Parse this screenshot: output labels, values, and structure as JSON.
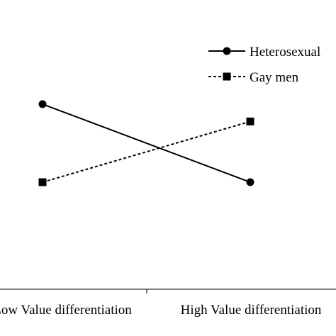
{
  "chart_data": {
    "type": "line",
    "title": "",
    "xlabel": "",
    "ylabel": "",
    "categories": [
      "Low Value differentiation",
      "High Value differentiation"
    ],
    "ylim": [
      0,
      10
    ],
    "grid": false,
    "legend_position": "top-right",
    "series": [
      {
        "name": "Heterosexual",
        "values": [
          6.4,
          3.7
        ],
        "marker": "circle",
        "line_style": "solid",
        "color": "#000000"
      },
      {
        "name": "Gay men",
        "values": [
          3.7,
          5.8
        ],
        "marker": "square",
        "line_style": "dashed",
        "color": "#000000"
      }
    ]
  }
}
